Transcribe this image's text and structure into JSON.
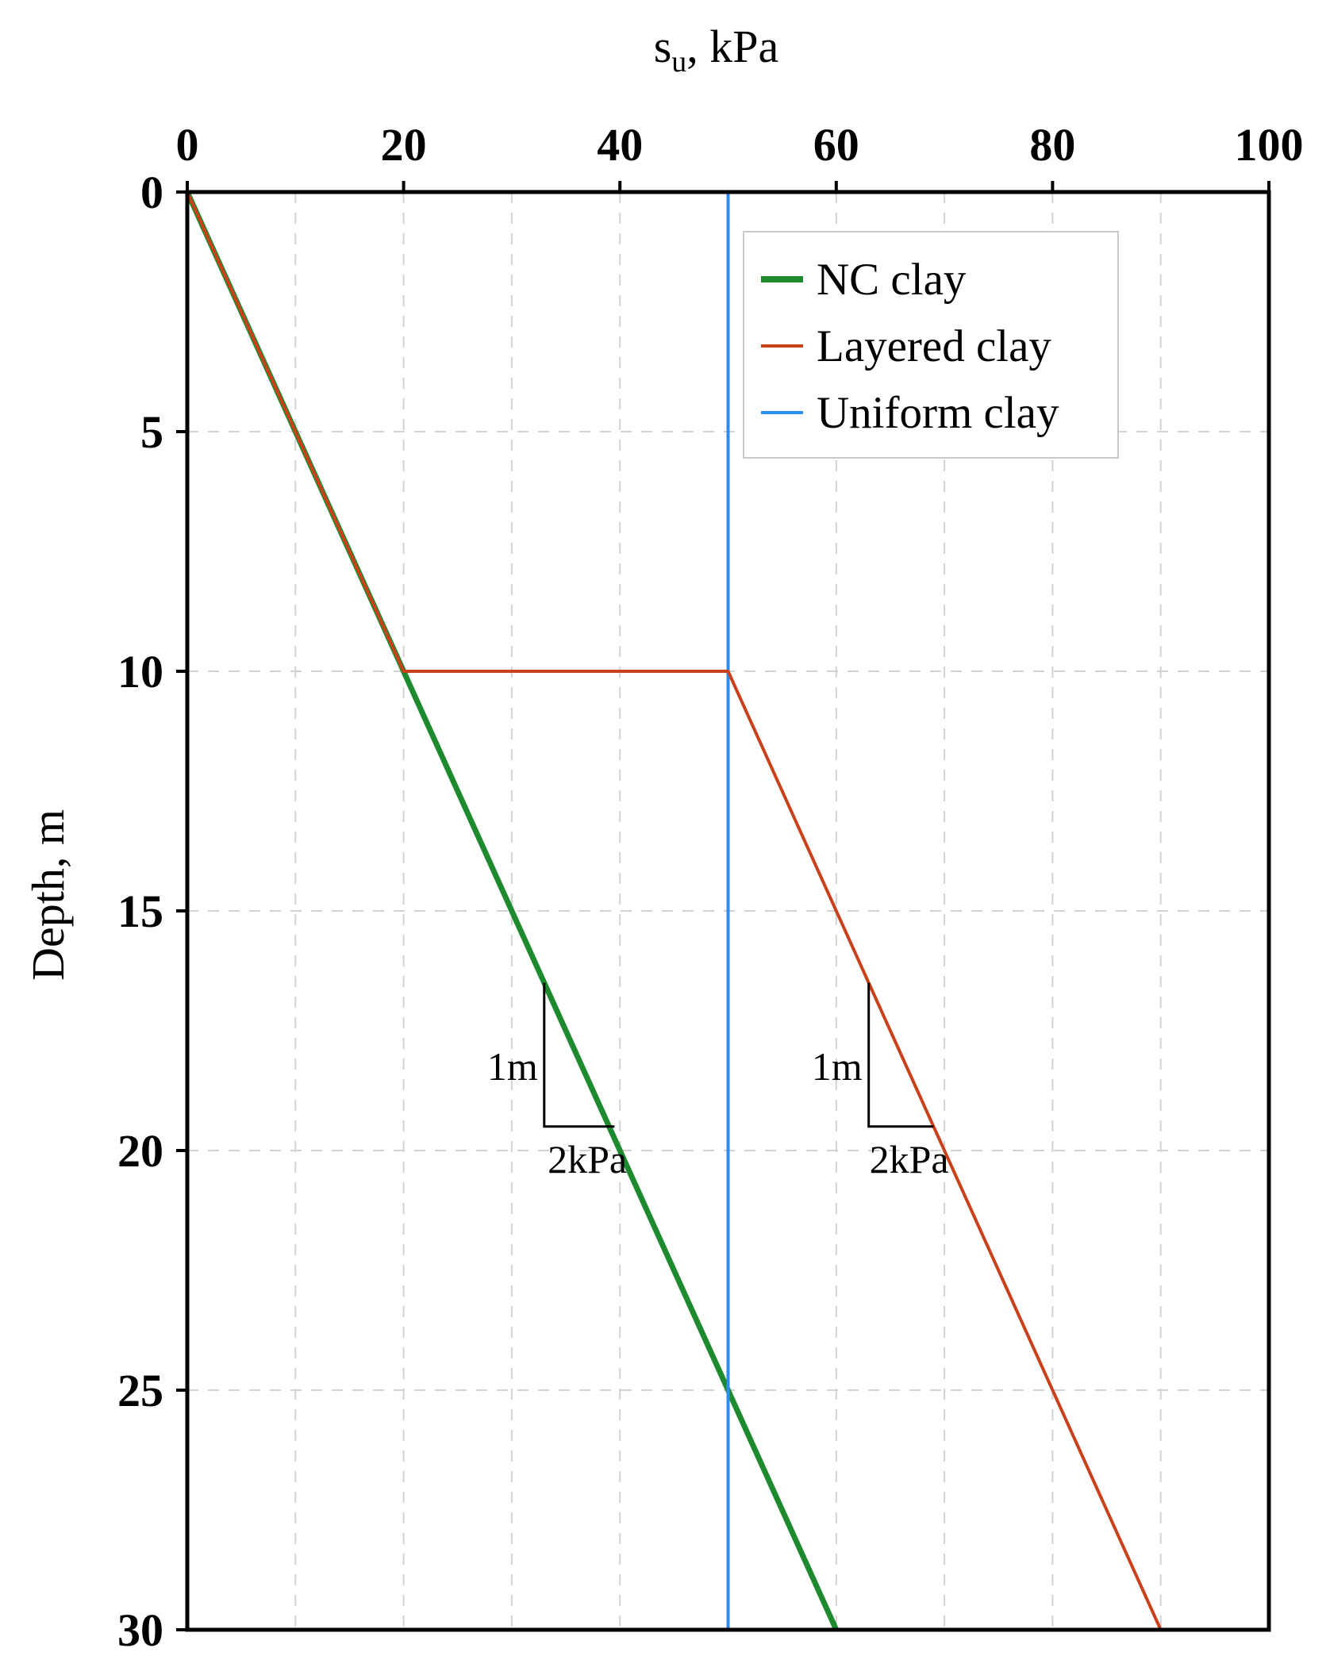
{
  "chart_data": {
    "type": "line",
    "xlabel": "s",
    "xlabel_sub": "u",
    "xlabel_rest": ", kPa",
    "ylabel": "Depth, m",
    "xlim": [
      0,
      100
    ],
    "ylim": [
      0,
      30
    ],
    "x_axis_position": "top",
    "y_axis_inverted": true,
    "x_ticks": [
      0,
      20,
      40,
      60,
      80,
      100
    ],
    "y_ticks": [
      0,
      5,
      10,
      15,
      20,
      25,
      30
    ],
    "x_tick_labels": [
      "0",
      "20",
      "40",
      "60",
      "80",
      "100"
    ],
    "y_tick_labels": [
      "0",
      "5",
      "10",
      "15",
      "20",
      "25",
      "30"
    ],
    "grid": true,
    "grid_x_step": 10,
    "grid_y_step": 5,
    "legend_position": "top-right",
    "series": [
      {
        "name": "NC clay",
        "color": "#1e8a2e",
        "x": [
          0,
          60
        ],
        "y": [
          0,
          30
        ]
      },
      {
        "name": "Layered clay",
        "color": "#c8411a",
        "x": [
          0,
          20,
          50,
          90
        ],
        "y": [
          0,
          10,
          10,
          30
        ]
      },
      {
        "name": "Uniform clay",
        "color": "#2a8cf0",
        "x": [
          50,
          50
        ],
        "y": [
          0,
          30
        ]
      }
    ],
    "annotations": [
      {
        "type": "slope-triangle",
        "vertical_label": "1m",
        "horizontal_label": "2kPa",
        "x": [
          33,
          39.5
        ],
        "y": [
          16.5,
          19.5
        ]
      },
      {
        "type": "slope-triangle",
        "vertical_label": "1m",
        "horizontal_label": "2kPa",
        "x": [
          63,
          69.0
        ],
        "y": [
          16.5,
          19.5
        ]
      }
    ]
  }
}
